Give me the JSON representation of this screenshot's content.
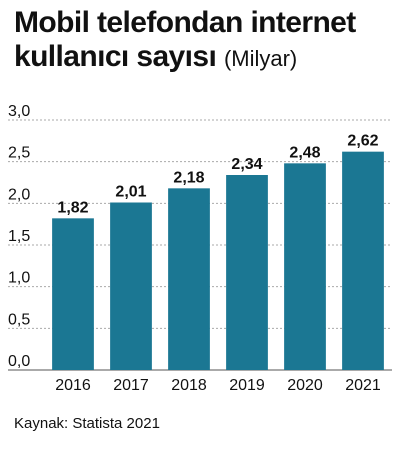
{
  "title": {
    "line1": "Mobil telefondan internet",
    "line2": "kullanıcı sayısı",
    "unit": "(Milyar)"
  },
  "source": "Kaynak: Statista 2021",
  "colors": {
    "bar": "#1b7793",
    "grid": "#aaaaaa",
    "text": "#111111"
  },
  "chart_data": {
    "type": "bar",
    "categories": [
      "2016",
      "2017",
      "2018",
      "2019",
      "2020",
      "2021"
    ],
    "values": [
      1.82,
      2.01,
      2.18,
      2.34,
      2.48,
      2.62
    ],
    "value_labels": [
      "1,82",
      "2,01",
      "2,18",
      "2,34",
      "2,48",
      "2,62"
    ],
    "yticks": [
      0,
      0.5,
      1,
      1.5,
      2,
      2.5,
      3
    ],
    "ytick_labels": [
      "0,0",
      "0,5",
      "1,0",
      "1,5",
      "2,0",
      "2,5",
      "3,0"
    ],
    "ylim": [
      0,
      3
    ],
    "grid": true,
    "title": "Mobil telefondan internet kullanıcı sayısı",
    "ylabel": "(Milyar)",
    "xlabel": ""
  }
}
